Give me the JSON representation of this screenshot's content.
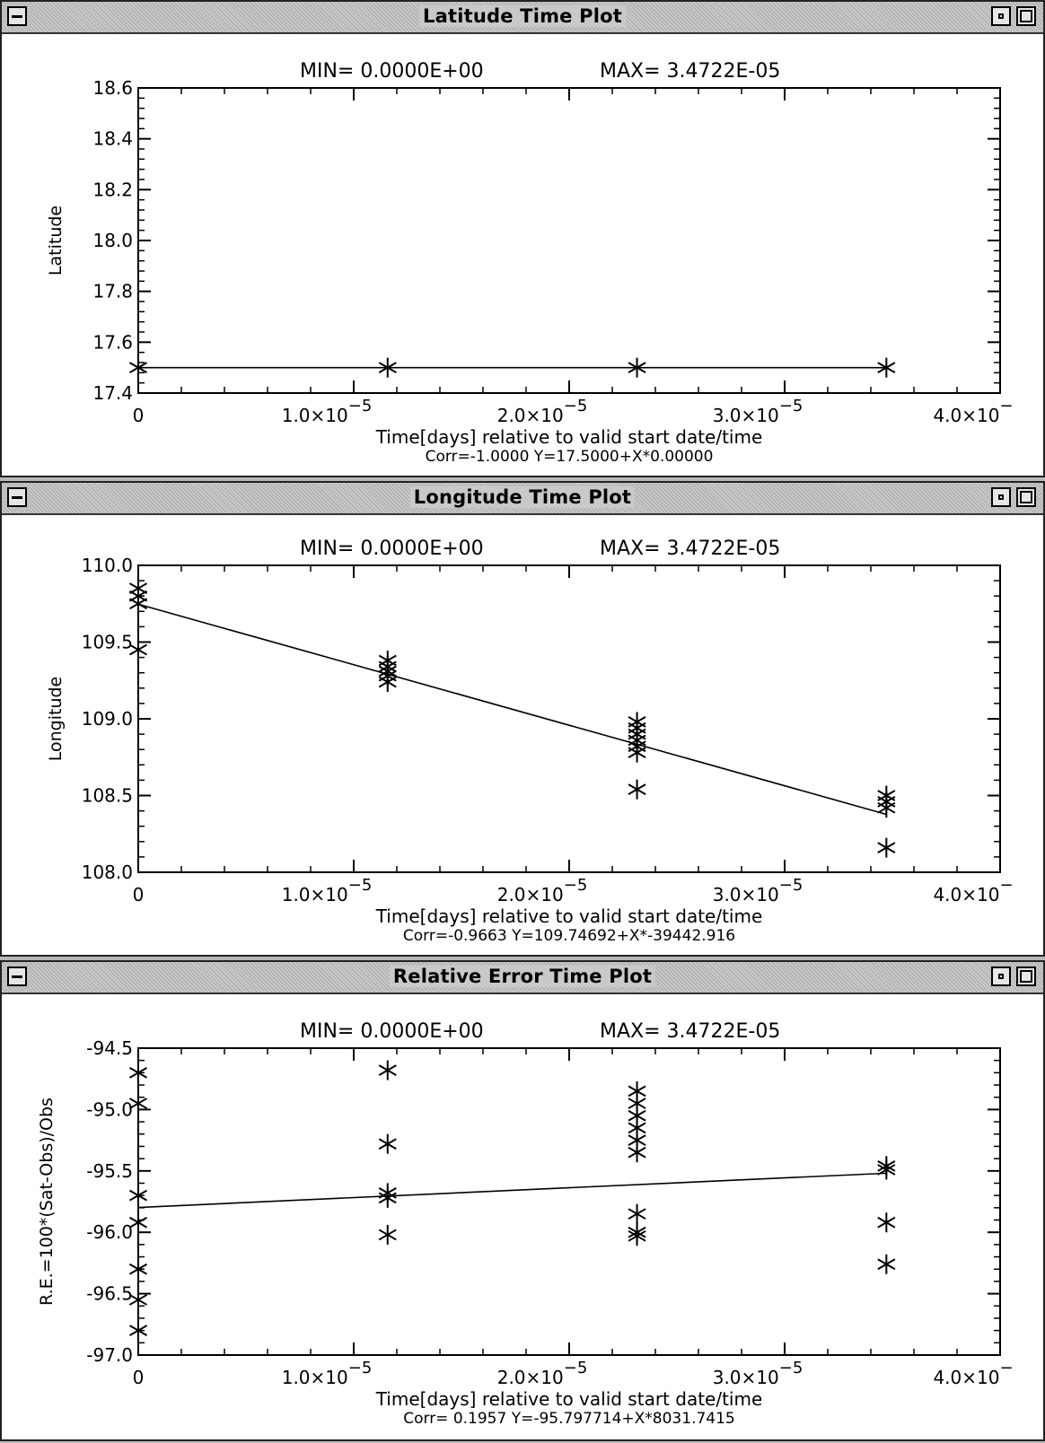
{
  "windows": [
    {
      "title": "Latitude Time Plot",
      "min_label": "MIN= 0.0000E+00",
      "max_label": "MAX= 3.4722E-05",
      "ylabel": "Latitude",
      "xlabel": "Time[days] relative to valid start date/time",
      "corr_label": "Corr=-1.0000 Y=17.5000+X*0.00000"
    },
    {
      "title": "Longitude Time Plot",
      "min_label": "MIN= 0.0000E+00",
      "max_label": "MAX= 3.4722E-05",
      "ylabel": "Longitude",
      "xlabel": "Time[days] relative to valid start date/time",
      "corr_label": "Corr=-0.9663 Y=109.74692+X*-39442.916"
    },
    {
      "title": "Relative Error Time Plot",
      "min_label": "MIN= 0.0000E+00",
      "max_label": "MAX= 3.4722E-05",
      "ylabel": "R.E.=100*(Sat-Obs)/Obs",
      "xlabel": "Time[days] relative to valid start date/time",
      "corr_label": "Corr= 0.1957 Y=-95.797714+X*8031.7415"
    }
  ],
  "chart_data": [
    {
      "type": "scatter",
      "title": "Latitude Time Plot",
      "xlabel": "Time[days] relative to valid start date/time",
      "ylabel": "Latitude",
      "xlim": [
        0,
        4e-05
      ],
      "ylim": [
        17.4,
        18.6
      ],
      "x_ticks": [
        0,
        1e-05,
        2e-05,
        3e-05,
        4e-05
      ],
      "x_tick_labels": [
        {
          "mant": "0",
          "exp": ""
        },
        {
          "mant": "1.0×10",
          "exp": "−5"
        },
        {
          "mant": "2.0×10",
          "exp": "−5"
        },
        {
          "mant": "3.0×10",
          "exp": "−5"
        },
        {
          "mant": "4.0×10",
          "exp": "−"
        }
      ],
      "y_ticks": [
        17.4,
        17.6,
        17.8,
        18.0,
        18.2,
        18.4,
        18.6
      ],
      "y_tick_labels": [
        "17.4",
        "17.6",
        "17.8",
        "18.0",
        "18.2",
        "18.4",
        "18.6"
      ],
      "points": [
        [
          0,
          17.5
        ],
        [
          1.1574e-05,
          17.5
        ],
        [
          2.3148e-05,
          17.5
        ],
        [
          3.4722e-05,
          17.5
        ]
      ],
      "fit_line": {
        "intercept": 17.5,
        "slope": 0
      }
    },
    {
      "type": "scatter",
      "title": "Longitude Time Plot",
      "xlabel": "Time[days] relative to valid start date/time",
      "ylabel": "Longitude",
      "xlim": [
        0,
        4e-05
      ],
      "ylim": [
        108.0,
        110.0
      ],
      "x_ticks": [
        0,
        1e-05,
        2e-05,
        3e-05,
        4e-05
      ],
      "x_tick_labels": [
        {
          "mant": "0",
          "exp": ""
        },
        {
          "mant": "1.0×10",
          "exp": "−5"
        },
        {
          "mant": "2.0×10",
          "exp": "−5"
        },
        {
          "mant": "3.0×10",
          "exp": "−5"
        },
        {
          "mant": "4.0×10",
          "exp": "−"
        }
      ],
      "y_ticks": [
        108.0,
        108.5,
        109.0,
        109.5,
        110.0
      ],
      "y_tick_labels": [
        "108.0",
        "108.5",
        "109.0",
        "109.5",
        "110.0"
      ],
      "points": [
        [
          0,
          109.85
        ],
        [
          0,
          109.8
        ],
        [
          0,
          109.75
        ],
        [
          0,
          109.45
        ],
        [
          1.1574e-05,
          109.38
        ],
        [
          1.1574e-05,
          109.34
        ],
        [
          1.1574e-05,
          109.31
        ],
        [
          1.1574e-05,
          109.28
        ],
        [
          1.1574e-05,
          109.24
        ],
        [
          2.3148e-05,
          108.98
        ],
        [
          2.3148e-05,
          108.94
        ],
        [
          2.3148e-05,
          108.9
        ],
        [
          2.3148e-05,
          108.86
        ],
        [
          2.3148e-05,
          108.82
        ],
        [
          2.3148e-05,
          108.78
        ],
        [
          2.3148e-05,
          108.54
        ],
        [
          3.4722e-05,
          108.5
        ],
        [
          3.4722e-05,
          108.46
        ],
        [
          3.4722e-05,
          108.42
        ],
        [
          3.4722e-05,
          108.16
        ]
      ],
      "fit_line": {
        "intercept": 109.74692,
        "slope": -39442.916
      }
    },
    {
      "type": "scatter",
      "title": "Relative Error Time Plot",
      "xlabel": "Time[days] relative to valid start date/time",
      "ylabel": "R.E.=100*(Sat-Obs)/Obs",
      "xlim": [
        0,
        4e-05
      ],
      "ylim": [
        -97.0,
        -94.5
      ],
      "x_ticks": [
        0,
        1e-05,
        2e-05,
        3e-05,
        4e-05
      ],
      "x_tick_labels": [
        {
          "mant": "0",
          "exp": ""
        },
        {
          "mant": "1.0×10",
          "exp": "−5"
        },
        {
          "mant": "2.0×10",
          "exp": "−5"
        },
        {
          "mant": "3.0×10",
          "exp": "−5"
        },
        {
          "mant": "4.0×10",
          "exp": "−"
        }
      ],
      "y_ticks": [
        -97.0,
        -96.5,
        -96.0,
        -95.5,
        -95.0,
        -94.5
      ],
      "y_tick_labels": [
        "-97.0",
        "-96.5",
        "-96.0",
        "-95.5",
        "-95.0",
        "-94.5"
      ],
      "points": [
        [
          0,
          -94.7
        ],
        [
          0,
          -94.95
        ],
        [
          0,
          -95.7
        ],
        [
          0,
          -95.92
        ],
        [
          0,
          -96.3
        ],
        [
          0,
          -96.55
        ],
        [
          0,
          -96.8
        ],
        [
          1.1574e-05,
          -94.68
        ],
        [
          1.1574e-05,
          -95.28
        ],
        [
          1.1574e-05,
          -95.68
        ],
        [
          1.1574e-05,
          -95.72
        ],
        [
          1.1574e-05,
          -96.02
        ],
        [
          2.3148e-05,
          -94.85
        ],
        [
          2.3148e-05,
          -94.95
        ],
        [
          2.3148e-05,
          -95.05
        ],
        [
          2.3148e-05,
          -95.15
        ],
        [
          2.3148e-05,
          -95.25
        ],
        [
          2.3148e-05,
          -95.35
        ],
        [
          2.3148e-05,
          -95.85
        ],
        [
          2.3148e-05,
          -96.0
        ],
        [
          2.3148e-05,
          -96.03
        ],
        [
          3.4722e-05,
          -95.46
        ],
        [
          3.4722e-05,
          -95.49
        ],
        [
          3.4722e-05,
          -95.92
        ],
        [
          3.4722e-05,
          -96.26
        ]
      ],
      "fit_line": {
        "intercept": -95.797714,
        "slope": 8031.7415
      }
    }
  ]
}
